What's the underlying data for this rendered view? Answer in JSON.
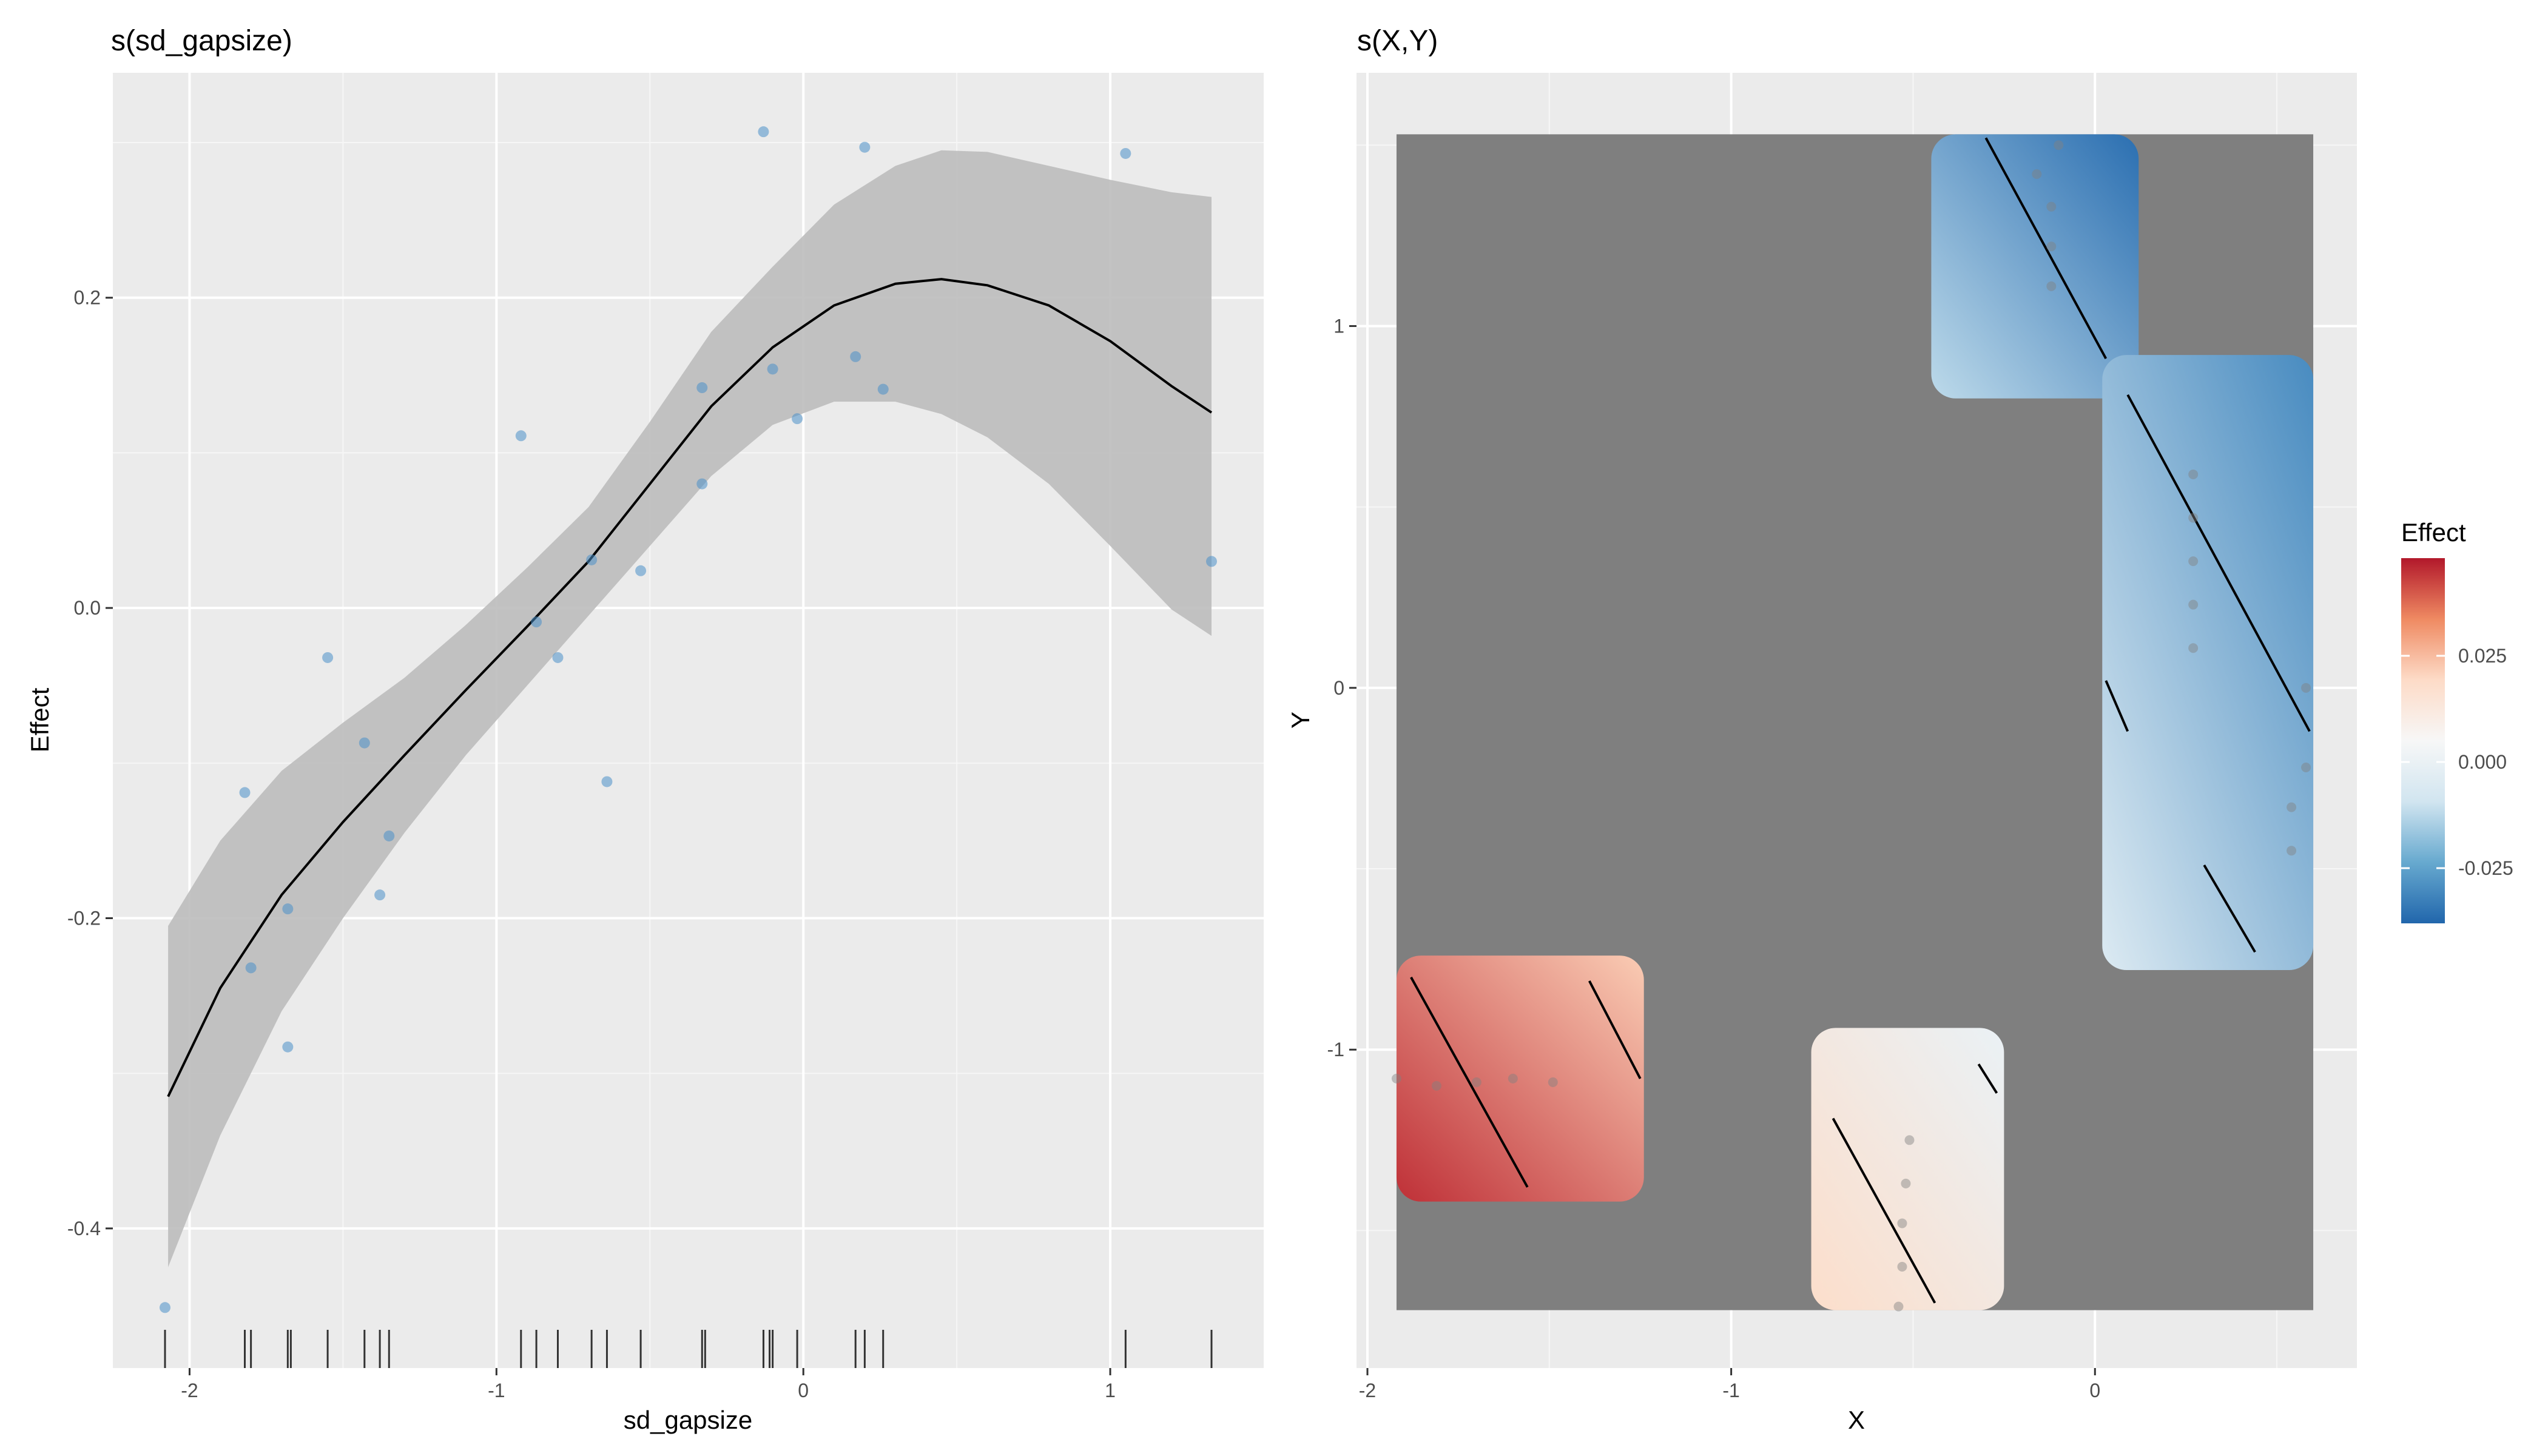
{
  "chart_data": [
    {
      "type": "scatter",
      "title": "s(sd_gapsize)",
      "xlabel": "sd_gapsize",
      "ylabel": "Effect",
      "xlim": [
        -2.25,
        1.5
      ],
      "ylim": [
        -0.49,
        0.345
      ],
      "xticks": [
        -2,
        -1,
        0,
        1
      ],
      "xtick_labels": [
        "-2",
        "-1",
        "0",
        "1"
      ],
      "yticks": [
        -0.4,
        -0.2,
        0.0,
        0.2
      ],
      "ytick_labels": [
        "-0.4",
        "-0.2",
        "0.0",
        "0.2"
      ],
      "grid": true,
      "colors": {
        "points": "#4a90c8",
        "line": "#000000",
        "band": "#bdbdbd",
        "panel": "#ebebeb"
      },
      "smooth": {
        "x": [
          -2.07,
          -1.9,
          -1.7,
          -1.5,
          -1.3,
          -1.1,
          -0.9,
          -0.7,
          -0.5,
          -0.3,
          -0.1,
          0.1,
          0.3,
          0.45,
          0.6,
          0.8,
          1.0,
          1.2,
          1.33
        ],
        "y": [
          -0.315,
          -0.245,
          -0.185,
          -0.138,
          -0.095,
          -0.053,
          -0.012,
          0.03,
          0.08,
          0.13,
          0.168,
          0.195,
          0.209,
          0.212,
          0.208,
          0.195,
          0.172,
          0.143,
          0.126
        ],
        "lower": [
          -0.425,
          -0.34,
          -0.26,
          -0.2,
          -0.145,
          -0.095,
          -0.05,
          -0.005,
          0.04,
          0.085,
          0.118,
          0.133,
          0.133,
          0.125,
          0.11,
          0.08,
          0.04,
          -0.001,
          -0.018
        ],
        "upper": [
          -0.205,
          -0.15,
          -0.105,
          -0.074,
          -0.045,
          -0.011,
          0.026,
          0.065,
          0.12,
          0.178,
          0.22,
          0.26,
          0.285,
          0.295,
          0.294,
          0.285,
          0.276,
          0.268,
          0.265
        ]
      },
      "points": [
        {
          "x": -2.08,
          "y": -0.451
        },
        {
          "x": -1.82,
          "y": -0.119
        },
        {
          "x": -1.8,
          "y": -0.232
        },
        {
          "x": -1.68,
          "y": -0.194
        },
        {
          "x": -1.68,
          "y": -0.283
        },
        {
          "x": -1.55,
          "y": -0.032
        },
        {
          "x": -1.43,
          "y": -0.087
        },
        {
          "x": -1.38,
          "y": -0.185
        },
        {
          "x": -1.35,
          "y": -0.147
        },
        {
          "x": -0.92,
          "y": 0.111
        },
        {
          "x": -0.87,
          "y": -0.009
        },
        {
          "x": -0.8,
          "y": -0.032
        },
        {
          "x": -0.69,
          "y": 0.031
        },
        {
          "x": -0.64,
          "y": -0.112
        },
        {
          "x": -0.53,
          "y": 0.024
        },
        {
          "x": -0.33,
          "y": 0.142
        },
        {
          "x": -0.33,
          "y": 0.08
        },
        {
          "x": -0.13,
          "y": 0.307
        },
        {
          "x": -0.1,
          "y": 0.154
        },
        {
          "x": -0.02,
          "y": 0.122
        },
        {
          "x": 0.17,
          "y": 0.162
        },
        {
          "x": 0.2,
          "y": 0.297
        },
        {
          "x": 0.26,
          "y": 0.141
        },
        {
          "x": 1.05,
          "y": 0.293
        },
        {
          "x": 1.33,
          "y": 0.03
        }
      ],
      "rug": [
        -2.08,
        -1.82,
        -1.8,
        -1.68,
        -1.67,
        -1.55,
        -1.43,
        -1.38,
        -1.35,
        -0.92,
        -0.87,
        -0.8,
        -0.69,
        -0.64,
        -0.53,
        -0.33,
        -0.32,
        -0.13,
        -0.11,
        -0.1,
        -0.02,
        0.17,
        0.2,
        0.26,
        1.05,
        1.33
      ]
    },
    {
      "type": "heatmap",
      "title": "s(X,Y)",
      "xlabel": "X",
      "ylabel": "Y",
      "xlim": [
        -2.03,
        0.72
      ],
      "ylim": [
        -1.88,
        1.7
      ],
      "xticks": [
        -2,
        -1,
        0
      ],
      "xtick_labels": [
        "-2",
        "-1",
        "0"
      ],
      "yticks": [
        -1,
        0,
        1
      ],
      "ytick_labels": [
        "-1",
        "0",
        "1"
      ],
      "grid": true,
      "colors": {
        "background_region": "#7f7f7f",
        "panel": "#ebebeb"
      },
      "raster": {
        "xmin": -1.92,
        "xmax": 0.6,
        "ymin": -1.72,
        "ymax": 1.53
      },
      "legend": {
        "title": "Effect",
        "position": "right",
        "ticks": [
          0.025,
          0.0,
          -0.025
        ],
        "tick_labels": [
          "0.025",
          "0.000",
          "-0.025"
        ],
        "range": [
          -0.038,
          0.048
        ],
        "colors": [
          "#b2182b",
          "#ef8a62",
          "#fddbc7",
          "#f7f7f7",
          "#d1e5f0",
          "#67a9cf",
          "#2166ac"
        ]
      },
      "regions": [
        {
          "name": "top",
          "values": [
            -0.012,
            -0.036
          ],
          "x": [
            -0.45,
            0.12
          ],
          "y": [
            0.8,
            1.53
          ]
        },
        {
          "name": "right",
          "values": [
            -0.005,
            -0.03
          ],
          "x": [
            0.02,
            0.6
          ],
          "y": [
            -0.78,
            0.92
          ]
        },
        {
          "name": "bottom-left",
          "values": [
            0.045,
            0.022
          ],
          "x": [
            -1.92,
            -1.24
          ],
          "y": [
            -1.42,
            -0.74
          ]
        },
        {
          "name": "bottom-center",
          "values": [
            0.018,
            0.0
          ],
          "x": [
            -0.78,
            -0.25
          ],
          "y": [
            -1.72,
            -0.94
          ]
        }
      ],
      "contours": [
        {
          "x": [
            -0.3,
            0.03
          ],
          "y": [
            1.52,
            0.91
          ]
        },
        {
          "x": [
            0.09,
            0.59
          ],
          "y": [
            0.81,
            -0.12
          ]
        },
        {
          "x": [
            0.03,
            0.09
          ],
          "y": [
            0.02,
            -0.12
          ]
        },
        {
          "x": [
            0.3,
            0.44
          ],
          "y": [
            -0.49,
            -0.73
          ]
        },
        {
          "x": [
            -1.88,
            -1.56
          ],
          "y": [
            -0.8,
            -1.38
          ]
        },
        {
          "x": [
            -1.39,
            -1.25
          ],
          "y": [
            -0.81,
            -1.08
          ]
        },
        {
          "x": [
            -0.72,
            -0.44
          ],
          "y": [
            -1.19,
            -1.7
          ]
        },
        {
          "x": [
            -0.32,
            -0.27
          ],
          "y": [
            -1.04,
            -1.12
          ]
        }
      ],
      "points": [
        {
          "x": -1.92,
          "y": -1.08
        },
        {
          "x": -1.81,
          "y": -1.1
        },
        {
          "x": -1.7,
          "y": -1.09
        },
        {
          "x": -1.6,
          "y": -1.08
        },
        {
          "x": -1.49,
          "y": -1.09
        },
        {
          "x": -0.51,
          "y": -1.25
        },
        {
          "x": -0.52,
          "y": -1.37
        },
        {
          "x": -0.53,
          "y": -1.48
        },
        {
          "x": -0.53,
          "y": -1.6
        },
        {
          "x": -0.54,
          "y": -1.71
        },
        {
          "x": -0.1,
          "y": 1.5
        },
        {
          "x": -0.16,
          "y": 1.42
        },
        {
          "x": -0.12,
          "y": 1.33
        },
        {
          "x": -0.12,
          "y": 1.22
        },
        {
          "x": -0.12,
          "y": 1.11
        },
        {
          "x": 0.27,
          "y": 0.59
        },
        {
          "x": 0.27,
          "y": 0.47
        },
        {
          "x": 0.27,
          "y": 0.35
        },
        {
          "x": 0.27,
          "y": 0.23
        },
        {
          "x": 0.27,
          "y": 0.11
        },
        {
          "x": 0.58,
          "y": 0.0
        },
        {
          "x": 0.58,
          "y": -0.22
        },
        {
          "x": 0.54,
          "y": -0.33
        },
        {
          "x": 0.54,
          "y": -0.45
        }
      ]
    }
  ]
}
